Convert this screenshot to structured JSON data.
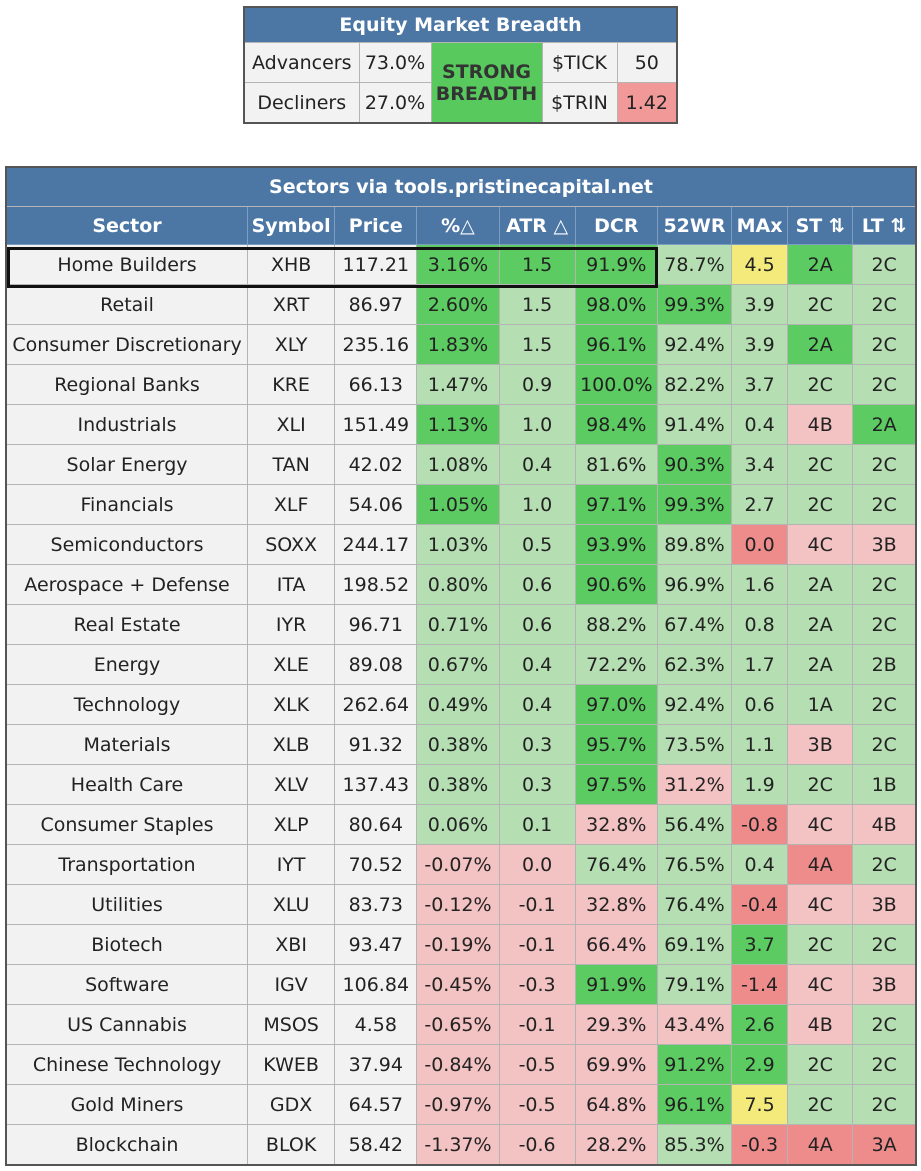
{
  "breadth": {
    "title": "Equity Market Breadth",
    "advancers_label": "Advancers",
    "advancers_value": "73.0%",
    "decliners_label": "Decliners",
    "decliners_value": "27.0%",
    "status_line1": "STRONG",
    "status_line2": "BREADTH",
    "tick_label": "$TICK",
    "tick_value": "50",
    "trin_label": "$TRIN",
    "trin_value": "1.42"
  },
  "sectors": {
    "title": "Sectors via tools.pristinecapital.net",
    "headers": [
      "Sector",
      "Symbol",
      "Price",
      "%△",
      "ATR △",
      "DCR",
      "52WR",
      "MAx",
      "ST ⇅",
      "LT ⇅"
    ],
    "rows": [
      {
        "sector": "Home Builders",
        "symbol": "XHB",
        "price": "117.21",
        "pct": "3.16%",
        "atr": "1.5",
        "dcr": "91.9%",
        "wr": "78.7%",
        "max": "4.5",
        "st": "2A",
        "lt": "2C"
      },
      {
        "sector": "Retail",
        "symbol": "XRT",
        "price": "86.97",
        "pct": "2.60%",
        "atr": "1.5",
        "dcr": "98.0%",
        "wr": "99.3%",
        "max": "3.9",
        "st": "2C",
        "lt": "2C"
      },
      {
        "sector": "Consumer Discretionary",
        "symbol": "XLY",
        "price": "235.16",
        "pct": "1.83%",
        "atr": "1.5",
        "dcr": "96.1%",
        "wr": "92.4%",
        "max": "3.9",
        "st": "2A",
        "lt": "2C"
      },
      {
        "sector": "Regional Banks",
        "symbol": "KRE",
        "price": "66.13",
        "pct": "1.47%",
        "atr": "0.9",
        "dcr": "100.0%",
        "wr": "82.2%",
        "max": "3.7",
        "st": "2C",
        "lt": "2C"
      },
      {
        "sector": "Industrials",
        "symbol": "XLI",
        "price": "151.49",
        "pct": "1.13%",
        "atr": "1.0",
        "dcr": "98.4%",
        "wr": "91.4%",
        "max": "0.4",
        "st": "4B",
        "lt": "2A"
      },
      {
        "sector": "Solar Energy",
        "symbol": "TAN",
        "price": "42.02",
        "pct": "1.08%",
        "atr": "0.4",
        "dcr": "81.6%",
        "wr": "90.3%",
        "max": "3.4",
        "st": "2C",
        "lt": "2C"
      },
      {
        "sector": "Financials",
        "symbol": "XLF",
        "price": "54.06",
        "pct": "1.05%",
        "atr": "1.0",
        "dcr": "97.1%",
        "wr": "99.3%",
        "max": "2.7",
        "st": "2C",
        "lt": "2C"
      },
      {
        "sector": "Semiconductors",
        "symbol": "SOXX",
        "price": "244.17",
        "pct": "1.03%",
        "atr": "0.5",
        "dcr": "93.9%",
        "wr": "89.8%",
        "max": "0.0",
        "st": "4C",
        "lt": "3B"
      },
      {
        "sector": "Aerospace + Defense",
        "symbol": "ITA",
        "price": "198.52",
        "pct": "0.80%",
        "atr": "0.6",
        "dcr": "90.6%",
        "wr": "96.9%",
        "max": "1.6",
        "st": "2A",
        "lt": "2C"
      },
      {
        "sector": "Real Estate",
        "symbol": "IYR",
        "price": "96.71",
        "pct": "0.71%",
        "atr": "0.6",
        "dcr": "88.2%",
        "wr": "67.4%",
        "max": "0.8",
        "st": "2A",
        "lt": "2C"
      },
      {
        "sector": "Energy",
        "symbol": "XLE",
        "price": "89.08",
        "pct": "0.67%",
        "atr": "0.4",
        "dcr": "72.2%",
        "wr": "62.3%",
        "max": "1.7",
        "st": "2A",
        "lt": "2B"
      },
      {
        "sector": "Technology",
        "symbol": "XLK",
        "price": "262.64",
        "pct": "0.49%",
        "atr": "0.4",
        "dcr": "97.0%",
        "wr": "92.4%",
        "max": "0.6",
        "st": "1A",
        "lt": "2C"
      },
      {
        "sector": "Materials",
        "symbol": "XLB",
        "price": "91.32",
        "pct": "0.38%",
        "atr": "0.3",
        "dcr": "95.7%",
        "wr": "73.5%",
        "max": "1.1",
        "st": "3B",
        "lt": "2C"
      },
      {
        "sector": "Health Care",
        "symbol": "XLV",
        "price": "137.43",
        "pct": "0.38%",
        "atr": "0.3",
        "dcr": "97.5%",
        "wr": "31.2%",
        "max": "1.9",
        "st": "2C",
        "lt": "1B"
      },
      {
        "sector": "Consumer Staples",
        "symbol": "XLP",
        "price": "80.64",
        "pct": "0.06%",
        "atr": "0.1",
        "dcr": "32.8%",
        "wr": "56.4%",
        "max": "-0.8",
        "st": "4C",
        "lt": "4B"
      },
      {
        "sector": "Transportation",
        "symbol": "IYT",
        "price": "70.52",
        "pct": "-0.07%",
        "atr": "0.0",
        "dcr": "76.4%",
        "wr": "76.5%",
        "max": "0.4",
        "st": "4A",
        "lt": "2C"
      },
      {
        "sector": "Utilities",
        "symbol": "XLU",
        "price": "83.73",
        "pct": "-0.12%",
        "atr": "-0.1",
        "dcr": "32.8%",
        "wr": "76.4%",
        "max": "-0.4",
        "st": "4C",
        "lt": "3B"
      },
      {
        "sector": "Biotech",
        "symbol": "XBI",
        "price": "93.47",
        "pct": "-0.19%",
        "atr": "-0.1",
        "dcr": "66.4%",
        "wr": "69.1%",
        "max": "3.7",
        "st": "2C",
        "lt": "2C"
      },
      {
        "sector": "Software",
        "symbol": "IGV",
        "price": "106.84",
        "pct": "-0.45%",
        "atr": "-0.3",
        "dcr": "91.9%",
        "wr": "79.1%",
        "max": "-1.4",
        "st": "4C",
        "lt": "3B"
      },
      {
        "sector": "US Cannabis",
        "symbol": "MSOS",
        "price": "4.58",
        "pct": "-0.65%",
        "atr": "-0.1",
        "dcr": "29.3%",
        "wr": "43.4%",
        "max": "2.6",
        "st": "4B",
        "lt": "2C"
      },
      {
        "sector": "Chinese Technology",
        "symbol": "KWEB",
        "price": "37.94",
        "pct": "-0.84%",
        "atr": "-0.5",
        "dcr": "69.9%",
        "wr": "91.2%",
        "max": "2.9",
        "st": "2C",
        "lt": "2C"
      },
      {
        "sector": "Gold Miners",
        "symbol": "GDX",
        "price": "64.57",
        "pct": "-0.97%",
        "atr": "-0.5",
        "dcr": "64.8%",
        "wr": "96.1%",
        "max": "7.5",
        "st": "2C",
        "lt": "2C"
      },
      {
        "sector": "Blockchain",
        "symbol": "BLOK",
        "price": "58.42",
        "pct": "-1.37%",
        "atr": "-0.6",
        "dcr": "28.2%",
        "wr": "85.3%",
        "max": "-0.3",
        "st": "4A",
        "lt": "3A"
      }
    ],
    "row_colors": [
      [
        "g",
        "g",
        "g",
        "lg",
        "y",
        "g",
        "lg"
      ],
      [
        "g",
        "lg",
        "g",
        "g",
        "lg",
        "lg",
        "lg"
      ],
      [
        "g",
        "lg",
        "g",
        "lg",
        "lg",
        "g",
        "lg"
      ],
      [
        "lg",
        "lg",
        "g",
        "lg",
        "lg",
        "lg",
        "lg"
      ],
      [
        "g",
        "lg",
        "g",
        "lg",
        "lg",
        "lr",
        "g"
      ],
      [
        "lg",
        "lg",
        "lg",
        "g",
        "lg",
        "lg",
        "lg"
      ],
      [
        "g",
        "lg",
        "g",
        "g",
        "lg",
        "lg",
        "lg"
      ],
      [
        "lg",
        "lg",
        "g",
        "lg",
        "r",
        "lr",
        "lr"
      ],
      [
        "lg",
        "lg",
        "g",
        "lg",
        "lg",
        "lg",
        "lg"
      ],
      [
        "lg",
        "lg",
        "lg",
        "lg",
        "lg",
        "lg",
        "lg"
      ],
      [
        "lg",
        "lg",
        "lg",
        "lg",
        "lg",
        "lg",
        "lg"
      ],
      [
        "lg",
        "lg",
        "g",
        "lg",
        "lg",
        "lg",
        "lg"
      ],
      [
        "lg",
        "lg",
        "g",
        "lg",
        "lg",
        "lr",
        "lg"
      ],
      [
        "lg",
        "lg",
        "g",
        "lr",
        "lg",
        "lg",
        "lg"
      ],
      [
        "lg",
        "lg",
        "lr",
        "lg",
        "r",
        "lr",
        "lr"
      ],
      [
        "lr",
        "lr",
        "lg",
        "lg",
        "lg",
        "r",
        "lg"
      ],
      [
        "lr",
        "lr",
        "lr",
        "lg",
        "r",
        "lr",
        "lr"
      ],
      [
        "lr",
        "lr",
        "lr",
        "lg",
        "g",
        "lg",
        "lg"
      ],
      [
        "lr",
        "lr",
        "g",
        "lg",
        "r",
        "lr",
        "lr"
      ],
      [
        "lr",
        "lr",
        "lr",
        "lr",
        "g",
        "lr",
        "lg"
      ],
      [
        "lr",
        "lr",
        "lr",
        "g",
        "g",
        "lg",
        "lg"
      ],
      [
        "lr",
        "lr",
        "lr",
        "g",
        "y",
        "lg",
        "lg"
      ],
      [
        "lr",
        "lr",
        "lr",
        "lg",
        "r",
        "r",
        "r"
      ]
    ],
    "highlighted_row": "Home Builders"
  },
  "colors": {
    "header_blue": "#4c77a5",
    "green": "#5ccb62",
    "light_green": "#b5deb2",
    "light_red": "#f3c2c2",
    "red": "#ee8c8c",
    "yellow": "#f3ea7b",
    "strong_breadth_green": "#57c95d",
    "trin_red": "#f19999"
  }
}
